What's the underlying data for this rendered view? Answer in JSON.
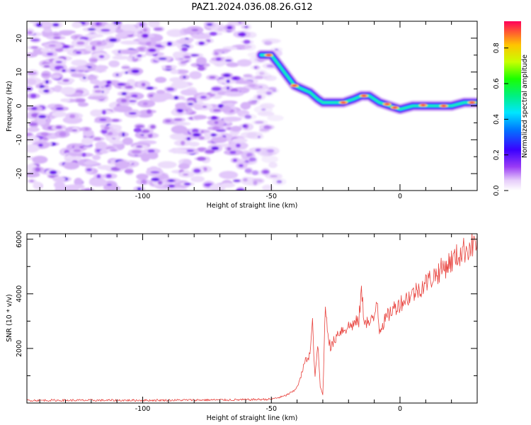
{
  "figure": {
    "title": "PAZ1.2024.036.08.26.G12"
  },
  "chart_data": [
    {
      "type": "heatmap",
      "xlabel": "Height of straight line (km)",
      "ylabel": "Frequency (Hz)",
      "xlim": [
        -145,
        30
      ],
      "ylim": [
        -25,
        25
      ],
      "xticks": [
        -100,
        -50,
        0
      ],
      "yticks": [
        -20,
        -10,
        0,
        10,
        20
      ],
      "grid": false,
      "ridge": {
        "x": [
          -54,
          -50,
          -47,
          -44,
          -41,
          -38,
          -35,
          -32,
          -30,
          -26,
          -22,
          -18,
          -15,
          -12,
          -8,
          -4,
          0,
          5,
          10,
          15,
          20,
          25,
          30
        ],
        "y": [
          15,
          15,
          12,
          9,
          6,
          5,
          4,
          2,
          1,
          1,
          1,
          2,
          3,
          3,
          1,
          0,
          -1,
          0,
          0,
          0,
          0,
          1,
          1
        ]
      },
      "colorbar": {
        "label": "Normalized spectral amplitude",
        "range": [
          0,
          0.95
        ],
        "ticks": [
          "0.0",
          "0.2",
          "0.4",
          "0.6",
          "0.8"
        ]
      }
    },
    {
      "type": "line",
      "xlabel": "Height of straight line (km)",
      "ylabel": "SNR (10 * v/v)",
      "xlim": [
        -145,
        30
      ],
      "ylim": [
        0,
        6200
      ],
      "xticks": [
        -100,
        -50,
        0
      ],
      "yticks": [
        2000,
        4000,
        6000
      ],
      "grid": false,
      "color": "#e8413c",
      "series": [
        {
          "x": [
            -145,
            -100,
            -60,
            -50,
            -45,
            -41,
            -39,
            -37,
            -35,
            -34,
            -33,
            -32,
            -31,
            -30,
            -29,
            -28,
            -27,
            -26,
            -24,
            -22,
            -20,
            -18,
            -16,
            -15,
            -14,
            -12,
            -10,
            -9,
            -8,
            -6,
            -4,
            -2,
            0,
            5,
            10,
            15,
            20,
            25,
            30
          ],
          "y": [
            100,
            100,
            120,
            140,
            250,
            450,
            800,
            1500,
            1800,
            2900,
            900,
            2200,
            600,
            300,
            3600,
            2600,
            2000,
            2200,
            2600,
            2700,
            2800,
            2900,
            3000,
            4100,
            3100,
            2900,
            3100,
            3900,
            2700,
            3000,
            3300,
            3500,
            3650,
            4000,
            4400,
            4800,
            5200,
            5600,
            5900
          ]
        }
      ]
    }
  ]
}
